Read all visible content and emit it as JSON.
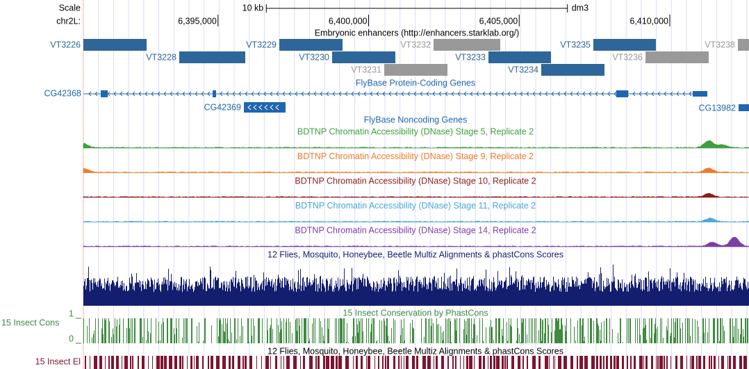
{
  "header": {
    "scale": "Scale",
    "chrom": "chr2L:",
    "assembly": "dm3"
  },
  "ruler": {
    "xlim": [
      6390530,
      6412630
    ],
    "xticks": [
      {
        "value": 6395000,
        "label": "6,395,000"
      },
      {
        "value": 6400000,
        "label": "6,400,000"
      },
      {
        "value": 6405000,
        "label": "6,405,000"
      },
      {
        "value": 6410000,
        "label": "6,410,000"
      }
    ],
    "scale_bar": {
      "value": 10000,
      "label": "10 kb"
    }
  },
  "enhancers": {
    "title": "Embryonic enhancers (http://enhancers.starklab.org/)",
    "features": [
      "VT3226",
      "VT3228",
      "VT3229",
      "VT3230",
      "VT3232",
      "VT3231",
      "VT3233",
      "VT3235",
      "VT3234",
      "VT3236",
      "VT3238"
    ]
  },
  "coding_genes": {
    "title": "FlyBase Protein-Coding Genes",
    "genes": [
      "CG42368",
      "CG42369",
      "CG13982"
    ]
  },
  "noncoding_genes": {
    "title": "FlyBase Noncoding Genes"
  },
  "dnase_tracks": [
    {
      "title": "BDTNP Chromatin Accessibility (DNase) Stage 5, Replicate 2",
      "color": "#3f9f3f"
    },
    {
      "title": "BDTNP Chromatin Accessibility (DNase) Stage 9, Replicate 2",
      "color": "#f07a2a"
    },
    {
      "title": "BDTNP Chromatin Accessibility (DNase) Stage 10, Replicate 2",
      "color": "#8c1c1c"
    },
    {
      "title": "BDTNP Chromatin Accessibility (DNase) Stage 11, Replicate 2",
      "color": "#4aa8d8"
    },
    {
      "title": "BDTNP Chromatin Accessibility (DNase) Stage 14, Replicate 2",
      "color": "#7a3fa8"
    }
  ],
  "multiz": {
    "title": "12 Flies, Mosquito, Honeybee, Beetle Multiz Alignments & phastCons Scores",
    "color": "#141e6e"
  },
  "phastcons": {
    "title": "15 Insect Conservation by PhastCons",
    "label": "15 Insect Cons",
    "ylim": [
      0,
      1
    ],
    "yticks": [
      0,
      1
    ],
    "color": "#3f8a3f"
  },
  "elements": {
    "title": "12 Flies, Mosquito, Honeybee, Beetle Multiz Alignments & phastCons Scores",
    "label": "15 Insect El",
    "color": "#7d1530"
  }
}
